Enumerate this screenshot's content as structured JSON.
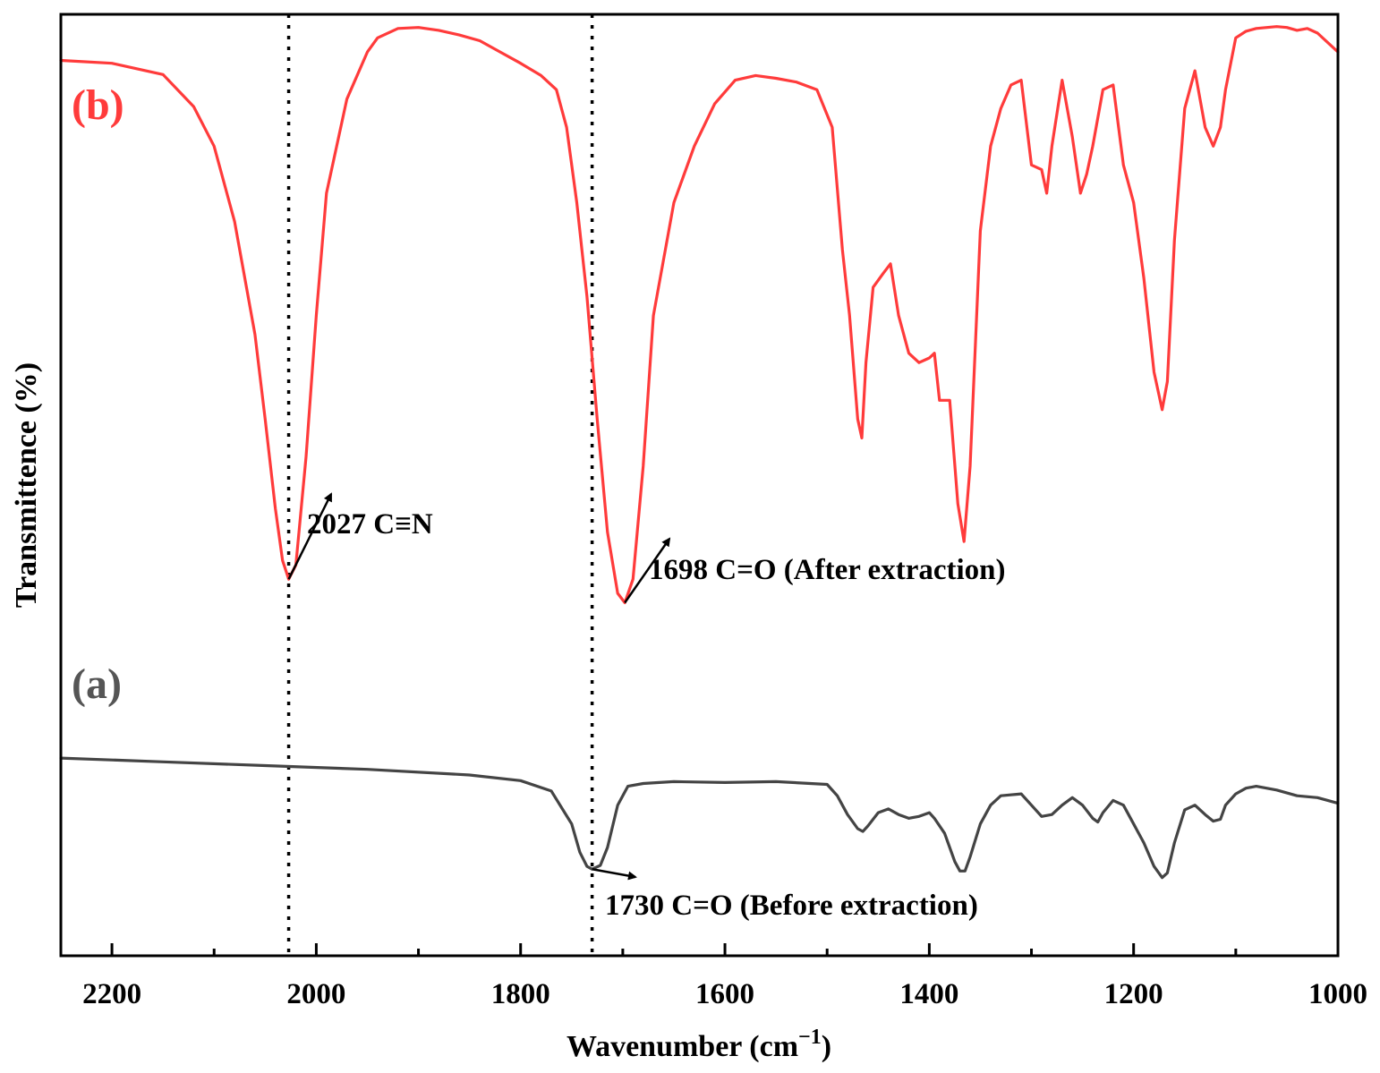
{
  "chart_data": {
    "type": "line",
    "title": "",
    "xlabel": "Wavenumber (cm",
    "xlabel_superscript": "−1",
    "xlabel_suffix": ")",
    "ylabel": "Transmittence (%)",
    "xlim": [
      2250,
      1000
    ],
    "x_reversed": true,
    "ylim": [
      0,
      100
    ],
    "y_ticks_shown": false,
    "x_ticks": [
      2200,
      2000,
      1800,
      1600,
      1400,
      1200,
      1000
    ],
    "x_tick_labels": [
      "2200",
      "2000",
      "1800",
      "1600",
      "1400",
      "1200",
      "1000"
    ],
    "x_minor_ticks": [
      2100,
      1900,
      1700,
      1500,
      1300,
      1100
    ],
    "grid": false,
    "reference_lines": [
      {
        "x": 2027,
        "style": "dotted"
      },
      {
        "x": 1730,
        "style": "dotted"
      }
    ],
    "series": [
      {
        "name": "(b)",
        "color": "#ff3b3b",
        "x": [
          2250,
          2200,
          2150,
          2120,
          2100,
          2080,
          2060,
          2050,
          2040,
          2033,
          2027,
          2020,
          2010,
          2000,
          1990,
          1970,
          1950,
          1940,
          1920,
          1900,
          1880,
          1860,
          1840,
          1820,
          1800,
          1780,
          1765,
          1755,
          1745,
          1735,
          1725,
          1715,
          1705,
          1698,
          1690,
          1680,
          1670,
          1650,
          1630,
          1610,
          1590,
          1570,
          1550,
          1530,
          1510,
          1495,
          1485,
          1478,
          1470,
          1466,
          1462,
          1455,
          1445,
          1438,
          1430,
          1420,
          1410,
          1400,
          1395,
          1390,
          1380,
          1372,
          1366,
          1360,
          1350,
          1340,
          1330,
          1320,
          1310,
          1300,
          1290,
          1285,
          1280,
          1270,
          1260,
          1252,
          1246,
          1240,
          1230,
          1220,
          1210,
          1200,
          1190,
          1180,
          1172,
          1167,
          1160,
          1150,
          1140,
          1130,
          1122,
          1115,
          1110,
          1100,
          1090,
          1080,
          1060,
          1050,
          1040,
          1030,
          1020,
          1000
        ],
        "values": [
          95.1,
          94.8,
          93.6,
          90.2,
          86.0,
          78.0,
          66.0,
          57.0,
          47.5,
          42.0,
          40.0,
          41.5,
          53.0,
          68.0,
          81.0,
          91.0,
          96.0,
          97.5,
          98.5,
          98.6,
          98.3,
          97.8,
          97.2,
          96.0,
          94.8,
          93.5,
          92.0,
          88.0,
          80.0,
          70.0,
          57.0,
          45.0,
          38.5,
          37.5,
          40.0,
          52.0,
          68.0,
          80.0,
          86.0,
          90.5,
          93.0,
          93.5,
          93.2,
          92.8,
          92.0,
          88.0,
          75.0,
          68.0,
          57.0,
          55.0,
          63.0,
          71.0,
          72.5,
          73.5,
          68.0,
          64.0,
          63.0,
          63.5,
          64.0,
          59.0,
          59.0,
          48.0,
          44.0,
          52.0,
          77.0,
          86.0,
          90.0,
          92.5,
          93.0,
          84.0,
          83.5,
          81.0,
          86.0,
          93.0,
          87.0,
          81.0,
          83.0,
          86.0,
          92.0,
          92.5,
          84.0,
          80.0,
          72.0,
          62.0,
          58.0,
          61.0,
          76.0,
          90.0,
          94.0,
          88.0,
          86.0,
          88.0,
          92.0,
          97.5,
          98.2,
          98.5,
          98.7,
          98.6,
          98.3,
          98.5,
          98.0,
          96.0
        ]
      },
      {
        "name": "(a)",
        "color": "#444444",
        "x": [
          2250,
          2150,
          2050,
          1950,
          1850,
          1800,
          1770,
          1750,
          1742,
          1735,
          1730,
          1722,
          1715,
          1705,
          1695,
          1680,
          1650,
          1600,
          1550,
          1500,
          1490,
          1480,
          1470,
          1465,
          1460,
          1450,
          1440,
          1430,
          1420,
          1410,
          1400,
          1395,
          1385,
          1375,
          1370,
          1365,
          1360,
          1350,
          1340,
          1330,
          1310,
          1300,
          1290,
          1280,
          1270,
          1260,
          1250,
          1240,
          1235,
          1230,
          1220,
          1210,
          1200,
          1190,
          1180,
          1172,
          1167,
          1160,
          1150,
          1140,
          1130,
          1122,
          1115,
          1110,
          1100,
          1090,
          1080,
          1060,
          1040,
          1020,
          1000
        ],
        "values": [
          21.0,
          20.6,
          20.2,
          19.8,
          19.2,
          18.6,
          17.5,
          14.0,
          11.0,
          9.5,
          9.2,
          9.6,
          11.5,
          16.0,
          18.0,
          18.3,
          18.5,
          18.4,
          18.5,
          18.2,
          17.0,
          15.0,
          13.5,
          13.2,
          13.8,
          15.2,
          15.6,
          15.0,
          14.6,
          14.8,
          15.2,
          14.6,
          13.0,
          10.0,
          9.0,
          9.0,
          10.5,
          14.0,
          16.0,
          17.0,
          17.2,
          16.0,
          14.8,
          15.0,
          16.0,
          16.8,
          16.0,
          14.6,
          14.2,
          15.2,
          16.5,
          16.0,
          14.0,
          12.0,
          9.5,
          8.3,
          8.8,
          12.0,
          15.5,
          16.0,
          15.0,
          14.3,
          14.5,
          16.0,
          17.2,
          17.8,
          18.0,
          17.6,
          17.0,
          16.8,
          16.2
        ]
      }
    ],
    "series_labels": [
      {
        "text": "(b)",
        "color": "#ff3b3b"
      },
      {
        "text": "(a)",
        "color": "#555555"
      }
    ],
    "annotations": [
      {
        "text": "2027 C≡N",
        "x": 2027,
        "series": "(b)"
      },
      {
        "text": "1698 C=O (After extraction)",
        "x": 1698,
        "series": "(b)"
      },
      {
        "text": "1730 C=O (Before extraction)",
        "x": 1730,
        "series": "(a)"
      }
    ]
  }
}
